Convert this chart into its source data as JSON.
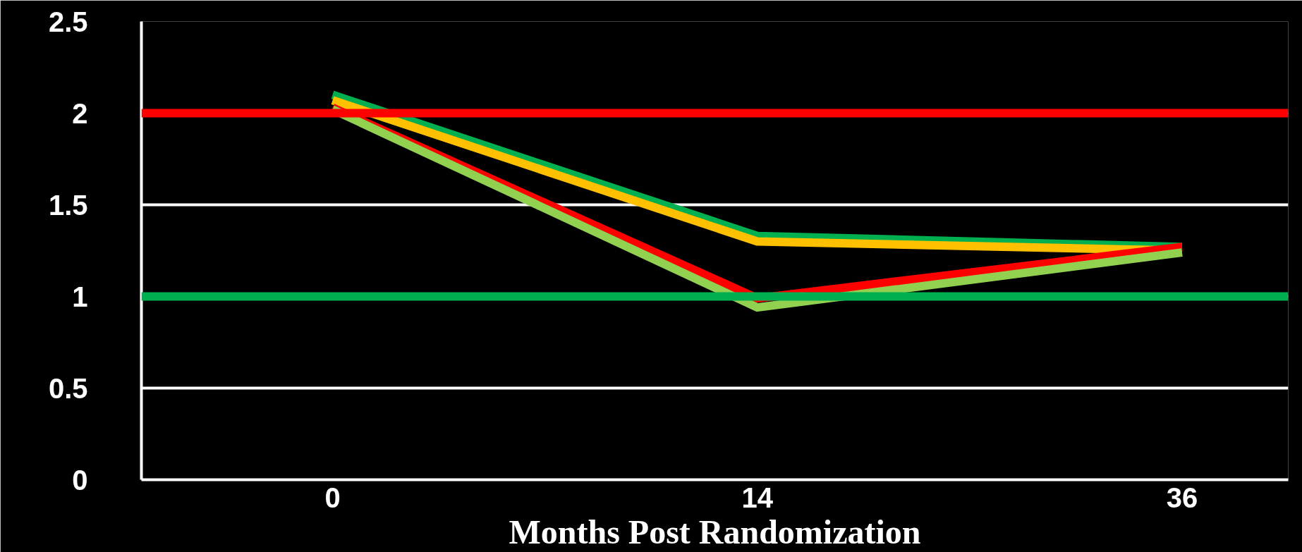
{
  "chart_data": {
    "type": "line",
    "xlabel": "Months Post Randomization",
    "categories": [
      "0",
      "14",
      "36"
    ],
    "series": [
      {
        "color": "#00b050",
        "values": [
          2.1,
          1.33,
          1.27
        ]
      },
      {
        "color": "#ffc000",
        "values": [
          2.07,
          1.3,
          1.25
        ]
      },
      {
        "color": "#ff0000",
        "values": [
          2.03,
          0.99,
          1.27
        ]
      },
      {
        "color": "#92d050",
        "values": [
          2.02,
          0.94,
          1.24
        ]
      }
    ],
    "ylim": [
      0,
      2.5
    ],
    "yticks": [
      0,
      0.5,
      1,
      1.5,
      2,
      2.5
    ],
    "grid": "y",
    "marker": "none",
    "line_style": "solid",
    "ref_lines": [
      {
        "axis": "y",
        "value": 2,
        "label": null,
        "color": "#ff0000"
      },
      {
        "axis": "y",
        "value": 1,
        "label": null,
        "color": "#00b050"
      }
    ]
  }
}
